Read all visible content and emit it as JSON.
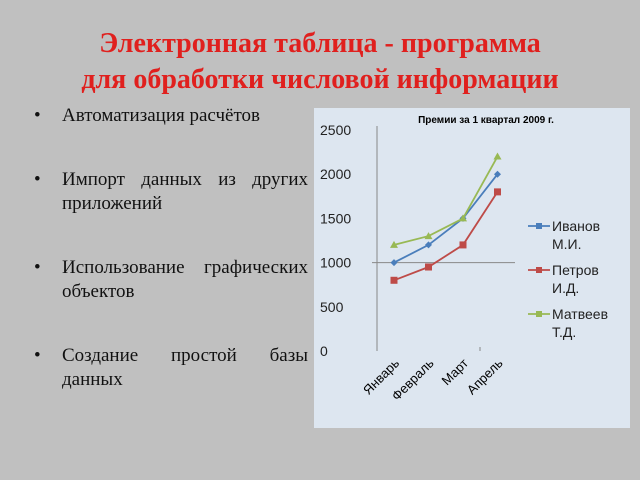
{
  "slide": {
    "title_lines": [
      "Электронная таблица - программа",
      "для обработки числовой информации"
    ],
    "bullets": [
      "Автоматизация расчётов",
      "Импорт данных из других приложений",
      "Использование графических объектов",
      "Создание простой базы данных"
    ]
  },
  "chart_data": {
    "type": "line",
    "title": "Премии за 1 квартал  2009 г.",
    "categories": [
      "Январь",
      "Февраль",
      "Март",
      "Апрель"
    ],
    "series": [
      {
        "name": "Иванов М.И.",
        "legend_lines": [
          "Иванов",
          "М.И."
        ],
        "color": "#4a7ebb",
        "marker": "diamond",
        "values": [
          1000,
          1200,
          1500,
          2000
        ]
      },
      {
        "name": "Петров И.Д.",
        "legend_lines": [
          "Петров",
          "И.Д."
        ],
        "color": "#be4b48",
        "marker": "square",
        "values": [
          800,
          950,
          1200,
          1800
        ]
      },
      {
        "name": "Матвеев Т.Д.",
        "legend_lines": [
          "Матвеев",
          "Т.Д."
        ],
        "color": "#98b954",
        "marker": "triangle",
        "values": [
          1200,
          1300,
          1500,
          2200
        ]
      }
    ],
    "yticks": [
      "0",
      "500",
      "1000",
      "1500",
      "2000",
      "2500"
    ],
    "ylim": [
      0,
      2500
    ],
    "legend": "right",
    "grid": false
  }
}
